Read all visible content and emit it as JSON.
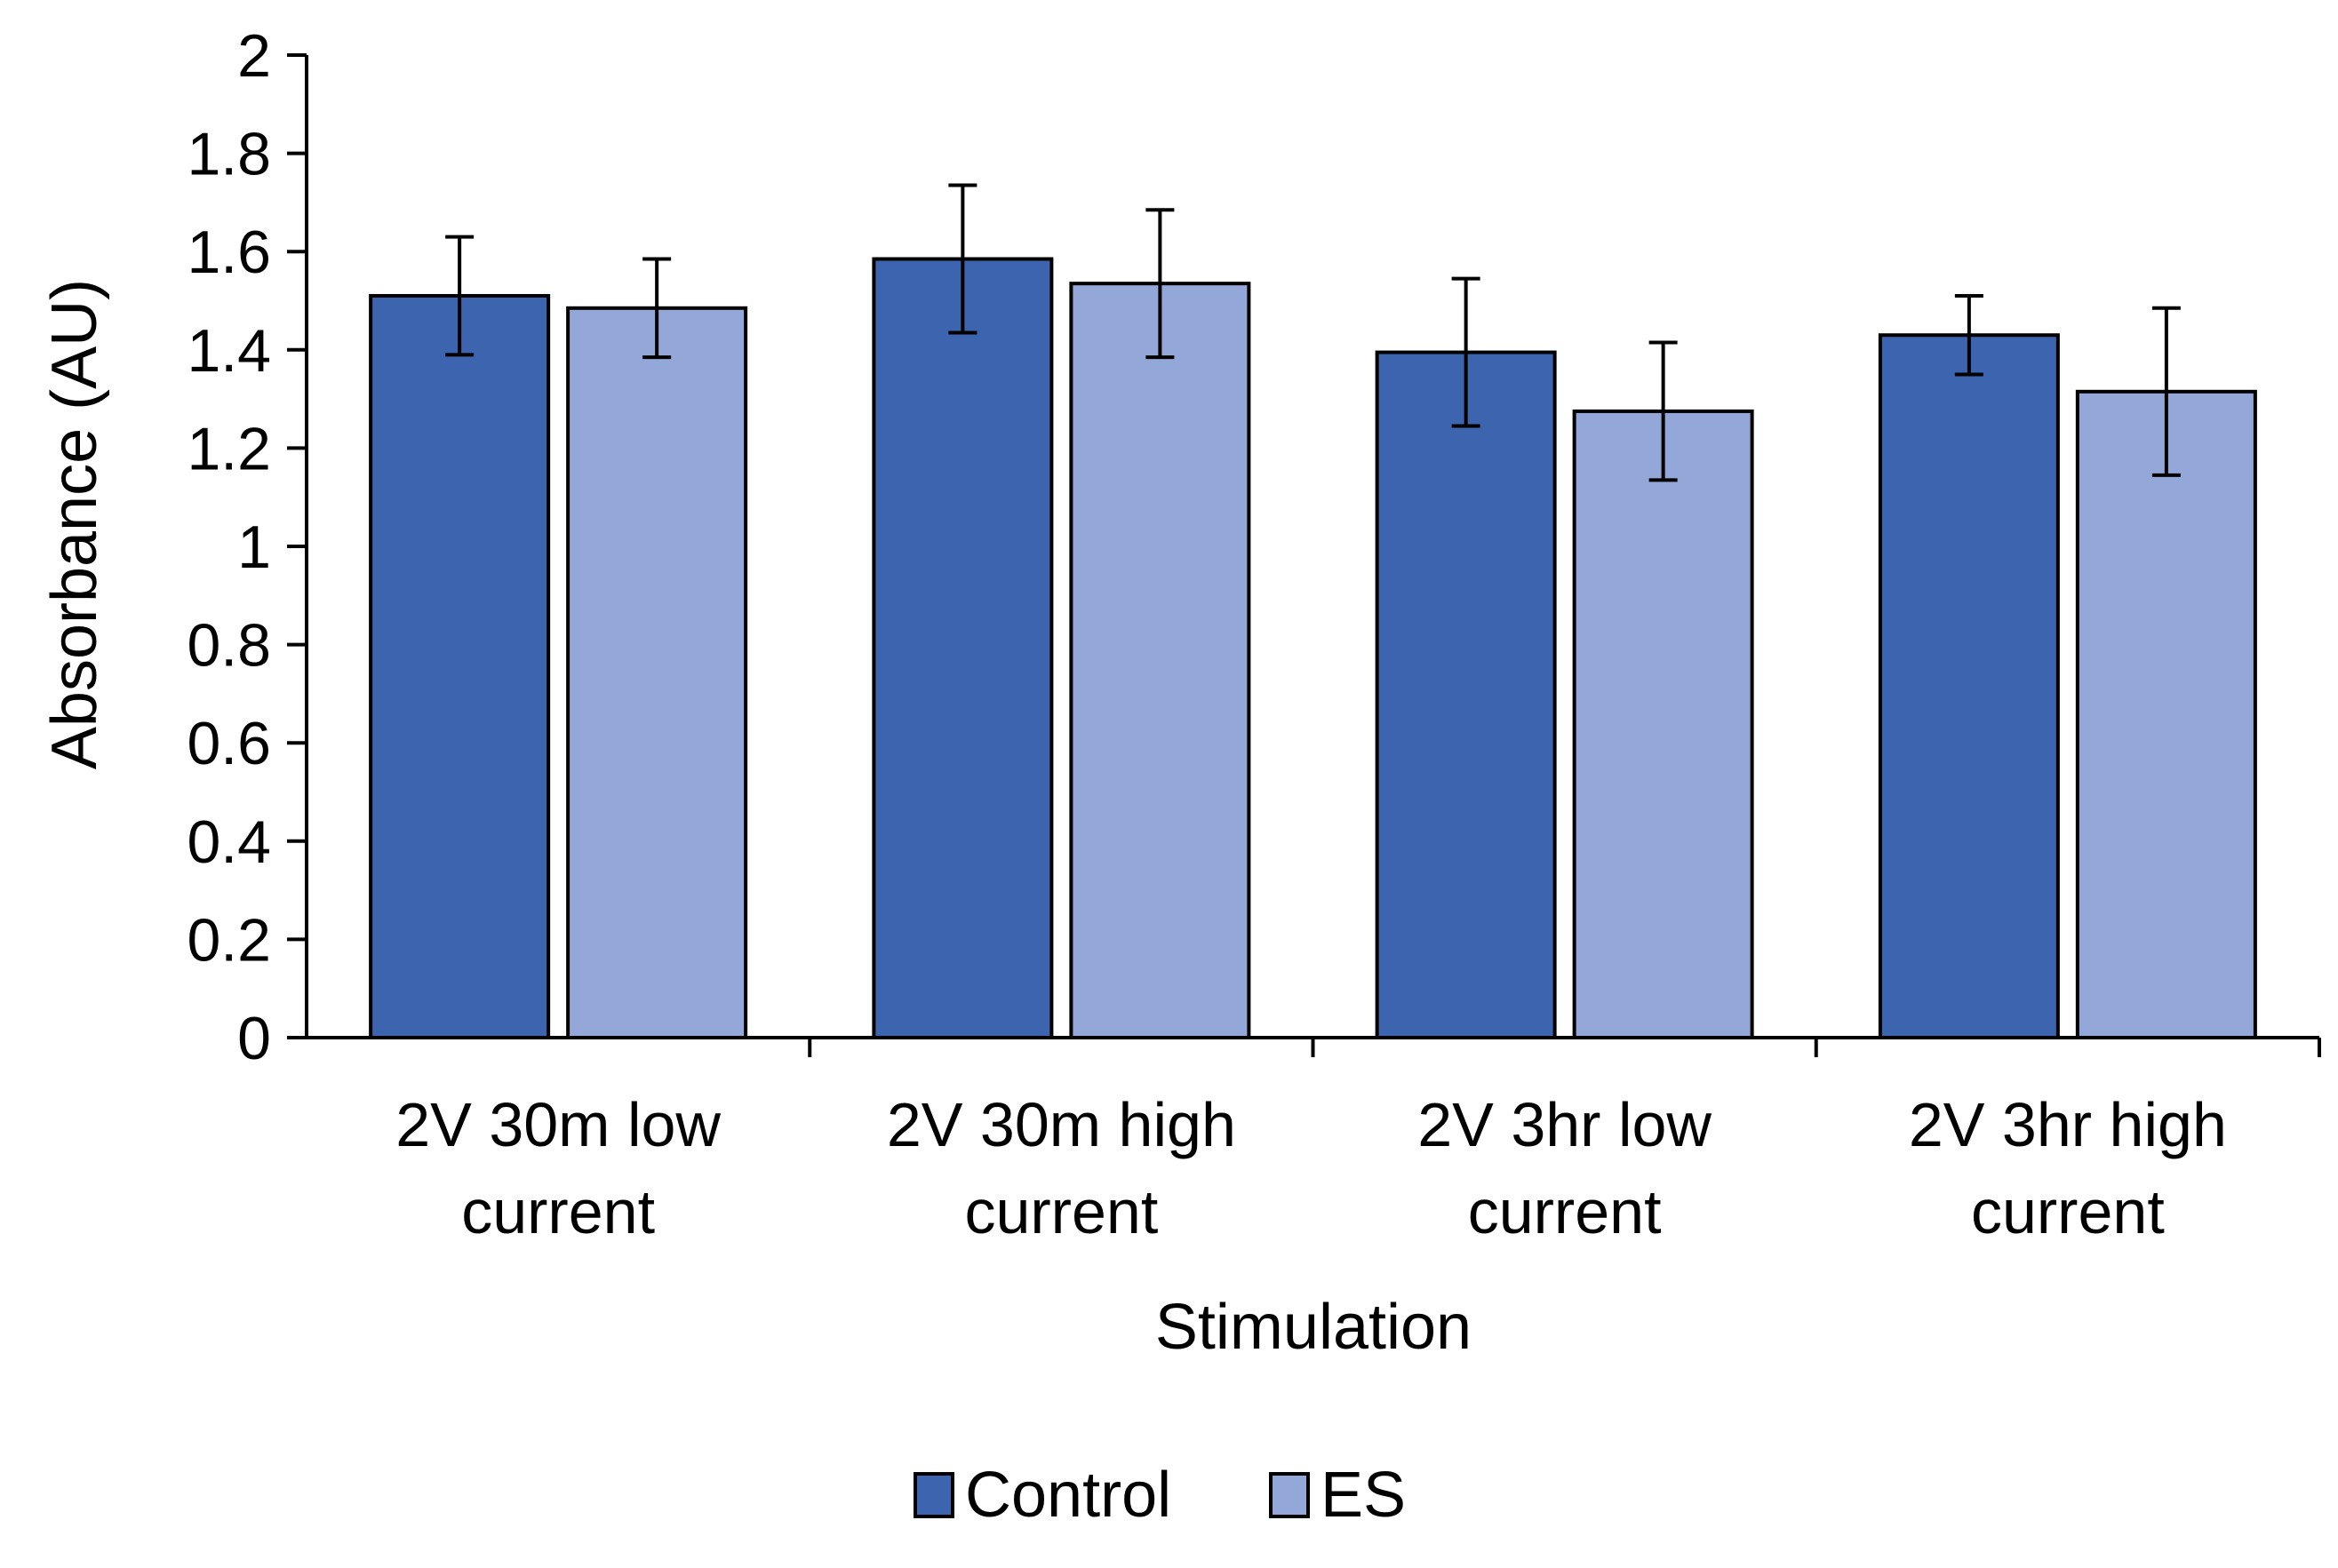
{
  "chart_data": {
    "type": "bar",
    "title": "",
    "xlabel": "Stimulation",
    "ylabel": "Absorbance (AU)",
    "ylim": [
      0,
      2
    ],
    "yticks": [
      "0",
      "0.2",
      "0.4",
      "0.6",
      "0.8",
      "1",
      "1.2",
      "1.4",
      "1.6",
      "1.8",
      "2"
    ],
    "grid": false,
    "legend_position": "bottom-center",
    "categories": [
      [
        "2V 30m low",
        "current"
      ],
      [
        "2V 30m high",
        "current"
      ],
      [
        "2V 3hr low",
        "current"
      ],
      [
        "2V 3hr high",
        "current"
      ]
    ],
    "series": [
      {
        "name": "Control",
        "color": "#3d64ae",
        "values": [
          1.51,
          1.585,
          1.395,
          1.43
        ],
        "errors": [
          0.12,
          0.15,
          0.15,
          0.08
        ]
      },
      {
        "name": "ES",
        "color": "#93a7d8",
        "values": [
          1.485,
          1.535,
          1.275,
          1.315
        ],
        "errors": [
          0.1,
          0.15,
          0.14,
          0.17
        ]
      }
    ]
  }
}
